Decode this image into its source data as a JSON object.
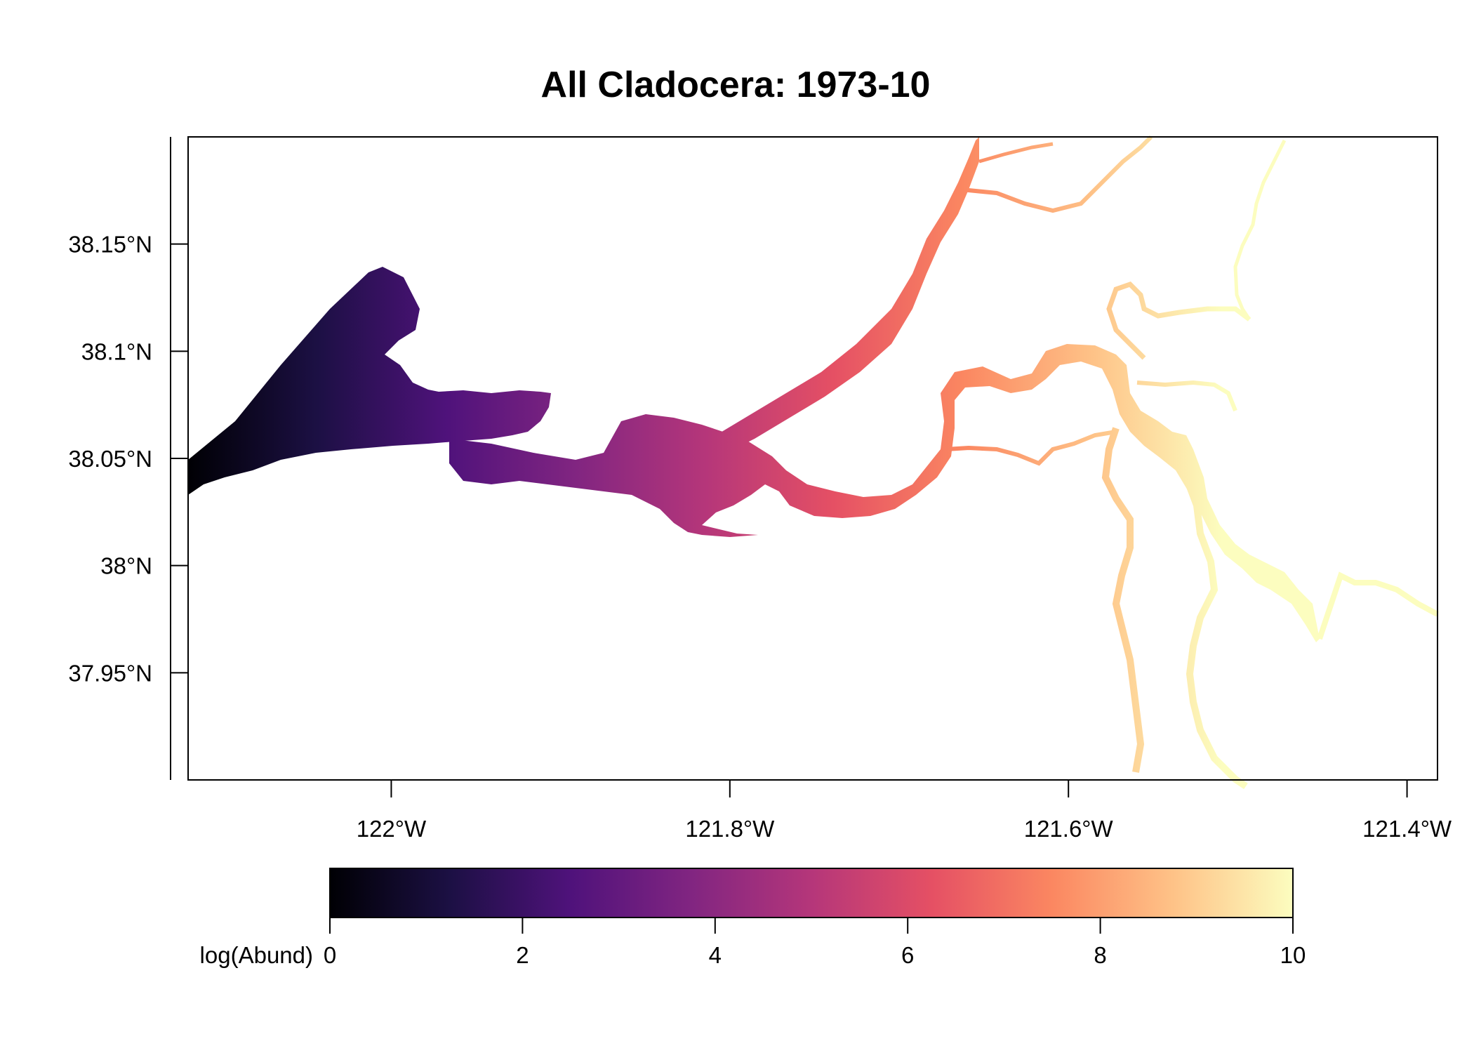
{
  "title": "All Cladocera: 1973-10",
  "x_axis": {
    "ticks": [
      {
        "value": -122.0,
        "label": "122°W"
      },
      {
        "value": -121.8,
        "label": "121.8°W"
      },
      {
        "value": -121.6,
        "label": "121.6°W"
      },
      {
        "value": -121.4,
        "label": "121.4°W"
      }
    ],
    "range": [
      -122.12,
      -121.382
    ]
  },
  "y_axis": {
    "ticks": [
      {
        "value": 37.95,
        "label": "37.95°N"
      },
      {
        "value": 38.0,
        "label": "38°N"
      },
      {
        "value": 38.05,
        "label": "38.05°N"
      },
      {
        "value": 38.1,
        "label": "38.1°N"
      },
      {
        "value": 38.15,
        "label": "38.15°N"
      }
    ],
    "range": [
      37.9,
      38.2
    ]
  },
  "legend": {
    "label": "log(Abund)",
    "ticks": [
      "0",
      "2",
      "4",
      "6",
      "8",
      "10"
    ],
    "range": [
      0,
      10
    ],
    "palette": [
      "#000004",
      "#1c1044",
      "#4f127b",
      "#812581",
      "#b5367a",
      "#e55064",
      "#fb8761",
      "#fec287",
      "#fcfdbf"
    ]
  },
  "colors": {
    "frame": "#000000",
    "background": "#ffffff"
  }
}
